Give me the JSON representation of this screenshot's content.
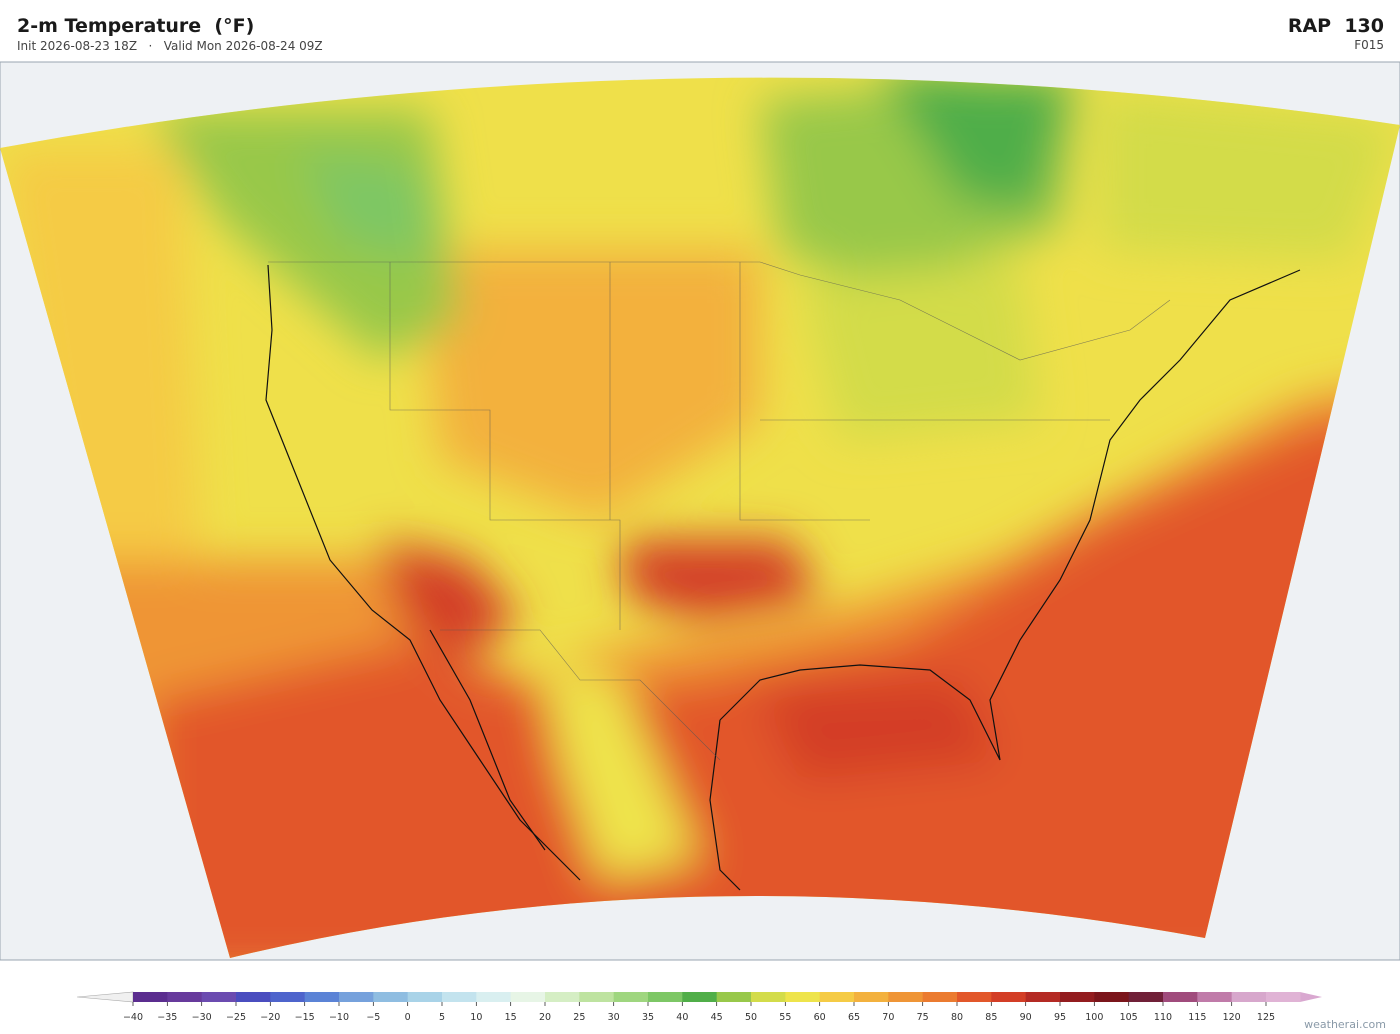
{
  "header": {
    "title": "2-m Temperature  (°F)",
    "subtitle": "Init 2026-08-23 18Z   ·   Valid Mon 2026-08-24 09Z",
    "model": "RAP  130",
    "forecast_hour": "F015"
  },
  "colorbar": {
    "ticks": [
      {
        "value": -40,
        "label": "−40"
      },
      {
        "value": -35,
        "label": "−35"
      },
      {
        "value": -30,
        "label": "−30"
      },
      {
        "value": -25,
        "label": "−25"
      },
      {
        "value": -20,
        "label": "−20"
      },
      {
        "value": -15,
        "label": "−15"
      },
      {
        "value": -10,
        "label": "−10"
      },
      {
        "value": -5,
        "label": "−5"
      },
      0,
      5,
      10,
      15,
      20,
      25,
      30,
      35,
      40,
      45,
      50,
      55,
      60,
      65,
      70,
      75,
      80,
      85,
      90,
      95,
      100,
      105,
      110,
      115,
      120,
      125
    ],
    "colors": [
      "#5b2d8f",
      "#673a9c",
      "#6b4bb0",
      "#4a4dbf",
      "#4e64cc",
      "#5b83d6",
      "#76a1dc",
      "#8fbde1",
      "#a9d3e8",
      "#c3e3ee",
      "#d9eff0",
      "#e7f5e6",
      "#d5eec4",
      "#bee3a0",
      "#9fd67f",
      "#7dc765",
      "#50ae48",
      "#98c84a",
      "#d3dc4a",
      "#eee44b",
      "#f5cb45",
      "#f3b13e",
      "#ef9536",
      "#eb7b30",
      "#e2572a",
      "#d33e26",
      "#b42a24",
      "#931c1f",
      "#7b151b",
      "#702038",
      "#a04b7c",
      "#c07ba9",
      "#d7a7cc",
      "#e0b3d5"
    ]
  },
  "footer": {
    "watermark": "weatherai.com"
  }
}
